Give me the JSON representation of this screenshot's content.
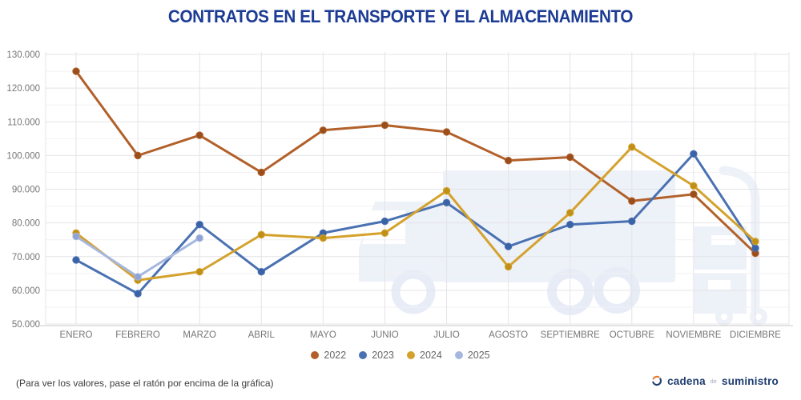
{
  "title": "CONTRATOS EN EL TRANSPORTE Y EL ALMACENAMIENTO",
  "title_color": "#1c3b94",
  "chart_data": {
    "type": "line",
    "categories": [
      "ENERO",
      "FEBRERO",
      "MARZO",
      "ABRIL",
      "MAYO",
      "JUNIO",
      "JULIO",
      "AGOSTO",
      "SEPTIEMBRE",
      "OCTUBRE",
      "NOVIEMBRE",
      "DICIEMBRE"
    ],
    "series": [
      {
        "name": "2022",
        "color": "#b2602a",
        "marker": "#9a4e1c",
        "values": [
          125000,
          100000,
          106000,
          95000,
          107500,
          109000,
          107000,
          98500,
          99500,
          86500,
          88500,
          71000
        ]
      },
      {
        "name": "2023",
        "color": "#4a71b2",
        "marker": "#3a62a6",
        "values": [
          69000,
          59000,
          79500,
          65500,
          77000,
          80500,
          86000,
          73000,
          79500,
          80500,
          100500,
          72500
        ]
      },
      {
        "name": "2024",
        "color": "#d4a22c",
        "marker": "#c08f18",
        "values": [
          77000,
          63000,
          65500,
          76500,
          75500,
          77000,
          89500,
          67000,
          83000,
          102500,
          91000,
          74500
        ]
      },
      {
        "name": "2025",
        "color": "#a6b7de",
        "marker": "#8fa3d4",
        "values": [
          76000,
          64000,
          75500
        ]
      }
    ],
    "ylim": [
      50000,
      130000
    ],
    "ytick_step": 10000,
    "ytick_labels": [
      "50.000",
      "60.000",
      "70.000",
      "80.000",
      "90.000",
      "100.000",
      "110.000",
      "120.000",
      "130.000"
    ],
    "grid": true,
    "legend_position": "bottom",
    "xlabel": "",
    "ylabel": ""
  },
  "colors": {
    "grid_major": "#e4e4e8",
    "grid_minor": "#f2f2f5",
    "axis_line": "#c9c9c9",
    "axis_text": "#767676",
    "watermark": "#edf1f8"
  },
  "footer": {
    "note": "(Para ver los valores, pase el ratón por encima de la gráfica)"
  },
  "brand": {
    "word1": "cadena",
    "word2": "de",
    "word3": "suministro",
    "icon_blue": "#1e3c6e",
    "icon_orange": "#e8792e"
  }
}
